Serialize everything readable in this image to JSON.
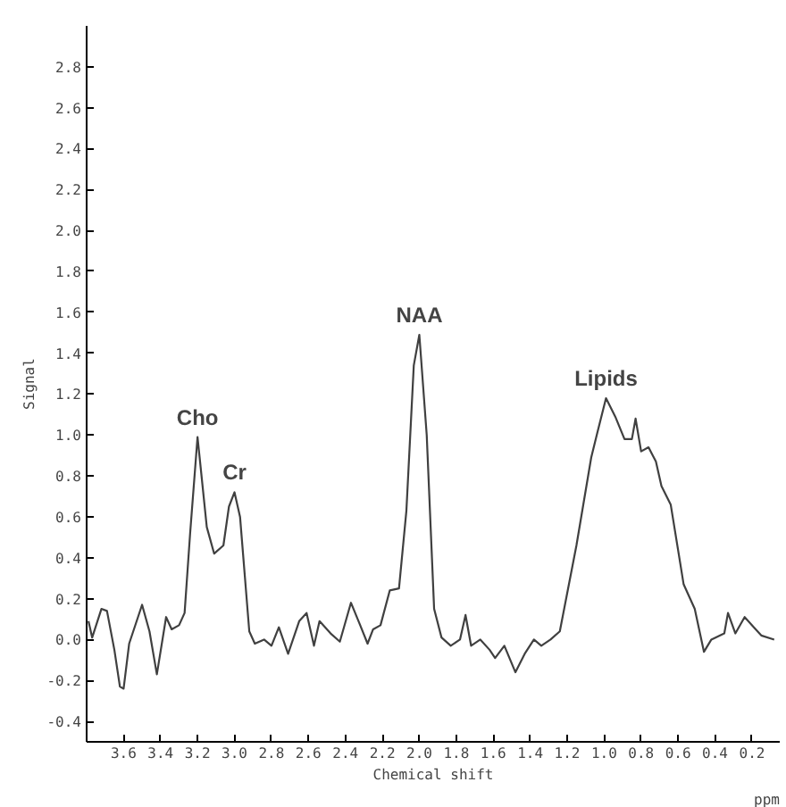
{
  "chart_data": {
    "type": "line",
    "xlabel": "Chemical shift",
    "ylabel": "Signal",
    "annotations": [
      {
        "text": "Cho",
        "x": 3.2,
        "y": 0.99
      },
      {
        "text": "Cr",
        "x": 3.0,
        "y": 0.72
      },
      {
        "text": "NAA",
        "x": 2.0,
        "y": 1.49
      },
      {
        "text": "Lipids",
        "x": 0.99,
        "y": 1.18
      },
      "ppm"
    ],
    "xlim": [
      3.8,
      0.05
    ],
    "ylim": [
      -0.5,
      3.0
    ],
    "xticks": [
      {
        "value": 3.6,
        "label": "3.6"
      },
      {
        "value": 3.4,
        "label": "3.4"
      },
      {
        "value": 3.2,
        "label": "3.2"
      },
      {
        "value": 3.0,
        "label": "3.0"
      },
      {
        "value": 2.8,
        "label": "2.8"
      },
      {
        "value": 2.6,
        "label": "2.6"
      },
      {
        "value": 2.4,
        "label": "2.4"
      },
      {
        "value": 2.2,
        "label": "2.2"
      },
      {
        "value": 2.0,
        "label": "2.0"
      },
      {
        "value": 1.8,
        "label": "1.8"
      },
      {
        "value": 1.6,
        "label": "1.6"
      },
      {
        "value": 1.4,
        "label": "1.4"
      },
      {
        "value": 1.2,
        "label": "1.2"
      },
      {
        "value": 1.0,
        "label": "1.0"
      },
      {
        "value": 0.8,
        "label": "0.8"
      },
      {
        "value": 0.6,
        "label": "0.6"
      },
      {
        "value": 0.4,
        "label": "0.4"
      },
      {
        "value": 0.2,
        "label": "0.2"
      }
    ],
    "yticks": [
      {
        "value": -0.4,
        "label": "-0.4"
      },
      {
        "value": -0.2,
        "label": "-0.2"
      },
      {
        "value": 0,
        "label": "0.0"
      },
      {
        "value": 0.2,
        "label": "0.2"
      },
      {
        "value": 0.4,
        "label": "0.4"
      },
      {
        "value": 0.6,
        "label": "0.6"
      },
      {
        "value": 0.8,
        "label": "0.8"
      },
      {
        "value": 1.0,
        "label": "1.0"
      },
      {
        "value": 1.2,
        "label": "1.2"
      },
      {
        "value": 1.4,
        "label": "1.4"
      },
      {
        "value": 1.6,
        "label": "1.6"
      },
      {
        "value": 1.8,
        "label": "1.8"
      },
      {
        "value": 2.0,
        "label": "2.0"
      },
      {
        "value": 2.2,
        "label": "2.2"
      },
      {
        "value": 2.4,
        "label": "2.4"
      },
      {
        "value": 2.6,
        "label": "2.6"
      },
      {
        "value": 2.8,
        "label": "2.8"
      }
    ],
    "grid": false,
    "series": [
      {
        "color": "#404040",
        "x": [
          3.79,
          3.77,
          3.72,
          3.69,
          3.65,
          3.62,
          3.6,
          3.57,
          3.5,
          3.46,
          3.42,
          3.37,
          3.34,
          3.3,
          3.27,
          3.24,
          3.2,
          3.15,
          3.11,
          3.06,
          3.03,
          3.0,
          2.97,
          2.92,
          2.89,
          2.84,
          2.8,
          2.76,
          2.71,
          2.65,
          2.61,
          2.57,
          2.54,
          2.48,
          2.43,
          2.37,
          2.32,
          2.28,
          2.25,
          2.21,
          2.16,
          2.11,
          2.07,
          2.03,
          2.0,
          1.96,
          1.92,
          1.88,
          1.83,
          1.78,
          1.75,
          1.72,
          1.67,
          1.62,
          1.59,
          1.54,
          1.48,
          1.43,
          1.38,
          1.34,
          1.29,
          1.24,
          1.15,
          1.07,
          1.04,
          0.99,
          0.94,
          0.89,
          0.85,
          0.83,
          0.8,
          0.76,
          0.72,
          0.69,
          0.64,
          0.57,
          0.51,
          0.46,
          0.42,
          0.35,
          0.33,
          0.29,
          0.24,
          0.19,
          0.15,
          0.08
        ],
        "values": [
          0.09,
          0.01,
          0.15,
          0.14,
          -0.05,
          -0.23,
          -0.24,
          -0.02,
          0.17,
          0.04,
          -0.17,
          0.11,
          0.05,
          0.07,
          0.13,
          0.52,
          0.99,
          0.55,
          0.42,
          0.46,
          0.65,
          0.72,
          0.6,
          0.04,
          -0.02,
          0.0,
          -0.03,
          0.06,
          -0.07,
          0.09,
          0.13,
          -0.03,
          0.09,
          0.03,
          -0.01,
          0.18,
          0.07,
          -0.02,
          0.05,
          0.07,
          0.24,
          0.25,
          0.63,
          1.34,
          1.49,
          1.0,
          0.15,
          0.01,
          -0.03,
          0.0,
          0.12,
          -0.03,
          0.0,
          -0.05,
          -0.09,
          -0.03,
          -0.16,
          -0.07,
          0.0,
          -0.03,
          0.0,
          0.04,
          0.46,
          0.89,
          1.0,
          1.18,
          1.09,
          0.98,
          0.98,
          1.08,
          0.92,
          0.94,
          0.87,
          0.75,
          0.66,
          0.27,
          0.15,
          -0.06,
          0.0,
          0.03,
          0.13,
          0.03,
          0.11,
          0.06,
          0.02,
          0.0
        ]
      }
    ]
  }
}
